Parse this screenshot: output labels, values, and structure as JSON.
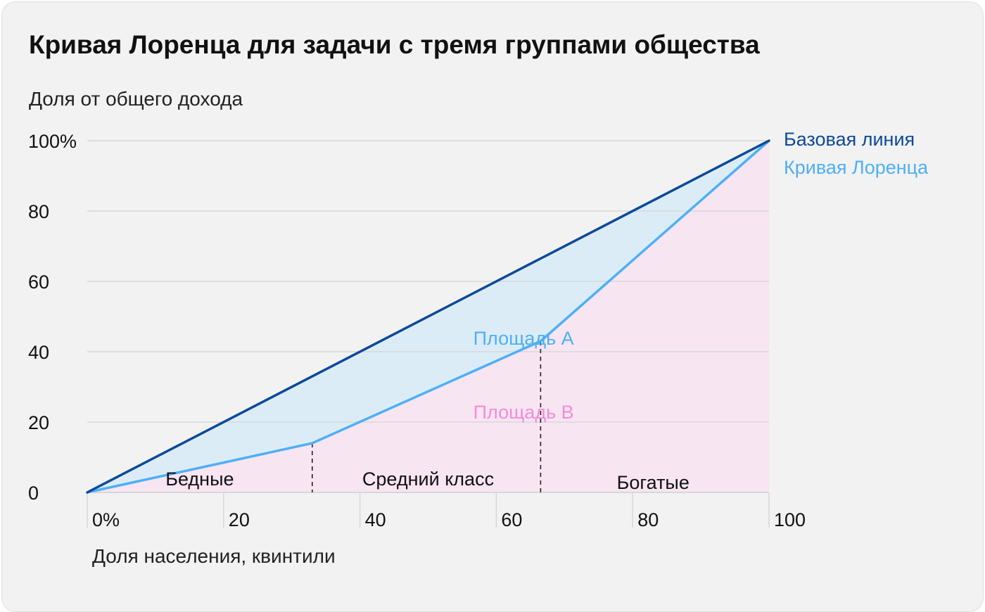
{
  "chart_data": {
    "type": "line",
    "title": "Кривая Лоренца для задачи с тремя группами общества",
    "ylabel": "Доля от общего дохода",
    "xlabel": "Доля населения, квинтили",
    "xlim": [
      0,
      100
    ],
    "ylim": [
      0,
      100
    ],
    "x_ticks": [
      {
        "value": 0,
        "label": "0%"
      },
      {
        "value": 20,
        "label": "20"
      },
      {
        "value": 40,
        "label": "40"
      },
      {
        "value": 60,
        "label": "60"
      },
      {
        "value": 80,
        "label": "80"
      },
      {
        "value": 100,
        "label": "100"
      }
    ],
    "y_ticks": [
      {
        "value": 0,
        "label": "0"
      },
      {
        "value": 20,
        "label": "20"
      },
      {
        "value": 40,
        "label": "40"
      },
      {
        "value": 60,
        "label": "60"
      },
      {
        "value": 80,
        "label": "80"
      },
      {
        "value": 100,
        "label": "100%"
      }
    ],
    "grid": "horizontal",
    "legend_position": "right",
    "series": [
      {
        "name": "Базовая линия",
        "color": "#0d4a99",
        "points": [
          [
            0,
            0
          ],
          [
            100,
            100
          ]
        ]
      },
      {
        "name": "Кривая Лоренца",
        "color": "#4db0f7",
        "points": [
          [
            0,
            0
          ],
          [
            33,
            14
          ],
          [
            66.5,
            43
          ],
          [
            100,
            100
          ]
        ]
      }
    ],
    "areas": [
      {
        "label": "Площадь A",
        "color": "#4db0f7",
        "fill": "#dcecf7",
        "label_at": [
          64,
          44
        ]
      },
      {
        "label": "Площадь B",
        "color": "#f58cd8",
        "fill": "#f8e5f2",
        "label_at": [
          64,
          23
        ]
      }
    ],
    "groups": [
      {
        "label": "Бедные",
        "label_at": [
          16.5,
          4
        ]
      },
      {
        "label": "Средний класс",
        "label_at": [
          50,
          4
        ]
      },
      {
        "label": "Богатые",
        "label_at": [
          83,
          3
        ]
      }
    ],
    "group_dividers": [
      33,
      66.5
    ]
  }
}
